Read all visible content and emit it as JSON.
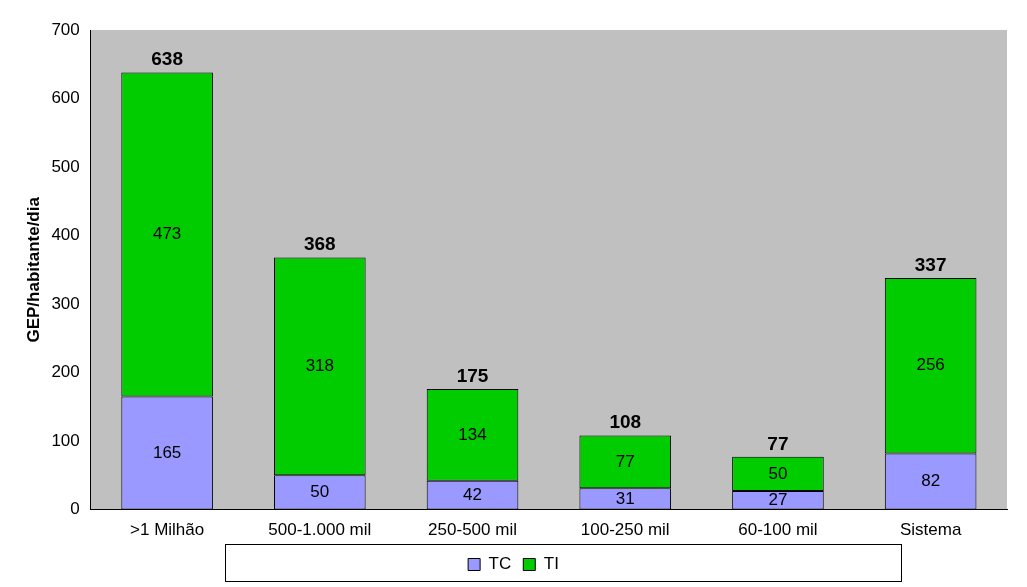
{
  "chart_data": {
    "type": "bar",
    "stacked": true,
    "y_label": "GEP/habitante/dia",
    "categories": [
      ">1 Milhão",
      "500-1.000 mil",
      "250-500 mil",
      "100-250 mil",
      "60-100 mil",
      "Sistema"
    ],
    "series": [
      {
        "name": "TC",
        "color": "#9999ff",
        "values": [
          165,
          50,
          42,
          31,
          27,
          82
        ]
      },
      {
        "name": "TI",
        "color": "#00cc00",
        "values": [
          473,
          318,
          134,
          77,
          50,
          256
        ]
      }
    ],
    "totals": [
      638,
      368,
      175,
      108,
      77,
      337
    ],
    "ylim": [
      0,
      700
    ],
    "yticks": [
      0,
      100,
      200,
      300,
      400,
      500,
      600,
      700
    ],
    "grid": false,
    "legend": "bottom",
    "data_labels": true
  }
}
